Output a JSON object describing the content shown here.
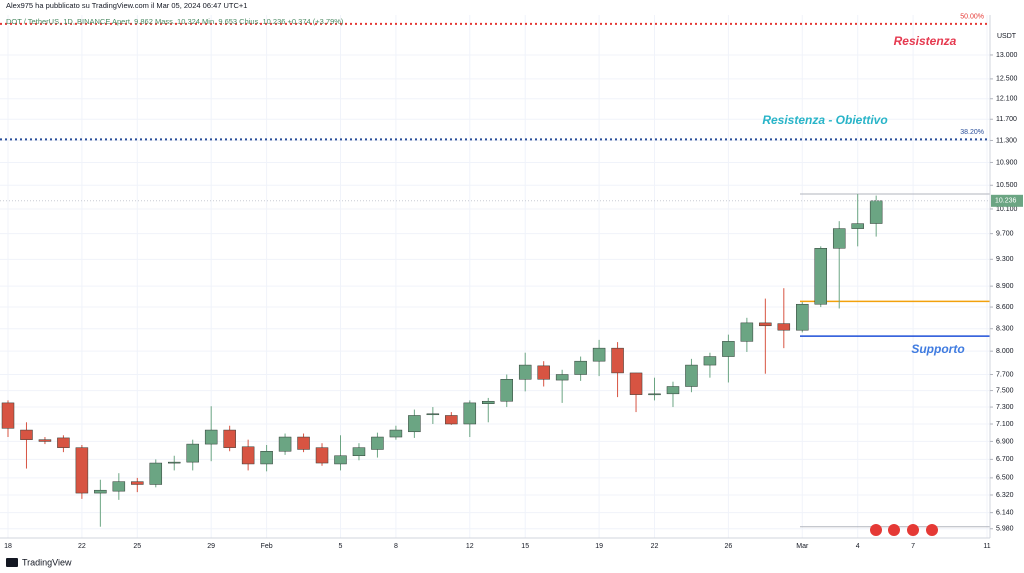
{
  "header": {
    "publisher": "Alex975 ha pubblicato su TradingView.com il Mar 05, 2024 06:47 UTC+1",
    "symbol_line": "DOT / TetherUS, 1D, BINANCE  Apert. 9.862  Mass. 10.324  Min. 9.653  Chius. 10.236  +0.374 (+3.79%)",
    "currency": "USDT"
  },
  "footer": {
    "brand": "TradingView"
  },
  "chart_data": {
    "type": "candlestick",
    "log": true,
    "grid": true,
    "up_color": "#6ba583",
    "down_color": "#d75442",
    "categories": [
      "18",
      null,
      null,
      null,
      "22",
      null,
      null,
      "25",
      null,
      null,
      null,
      "29",
      null,
      null,
      "Feb",
      null,
      null,
      null,
      "5",
      null,
      null,
      "8",
      null,
      null,
      null,
      "12",
      null,
      null,
      "15",
      null,
      null,
      null,
      "19",
      null,
      null,
      "22",
      null,
      null,
      null,
      "26",
      null,
      null,
      null,
      "Mar",
      null,
      null,
      "4",
      null,
      null,
      "7",
      null,
      null,
      null,
      "11"
    ],
    "series": [
      {
        "name": "Open",
        "values": [
          7.35,
          7.03,
          6.92,
          6.94,
          6.83,
          6.34,
          6.36,
          6.46,
          6.43,
          6.66,
          6.67,
          6.87,
          7.03,
          6.84,
          6.65,
          6.79,
          6.95,
          6.83,
          6.65,
          6.74,
          6.81,
          6.95,
          7.01,
          7.21,
          7.2,
          7.1,
          7.34,
          7.37,
          7.64,
          7.81,
          7.63,
          7.7,
          7.87,
          8.04,
          7.72,
          7.45,
          7.46,
          7.55,
          7.82,
          7.93,
          8.13,
          8.38,
          8.37,
          8.28,
          8.64,
          9.47,
          9.78,
          9.862,
          null,
          null,
          null,
          null,
          null,
          null
        ]
      },
      {
        "name": "High",
        "values": [
          7.38,
          7.12,
          6.95,
          6.97,
          6.86,
          6.48,
          6.55,
          6.5,
          6.7,
          6.74,
          6.92,
          7.31,
          7.08,
          6.92,
          6.86,
          6.99,
          6.99,
          6.88,
          6.97,
          6.88,
          7.0,
          7.08,
          7.27,
          7.3,
          7.24,
          7.38,
          7.41,
          7.7,
          7.98,
          7.87,
          7.76,
          7.93,
          8.15,
          8.12,
          7.72,
          7.66,
          7.61,
          7.9,
          7.98,
          8.22,
          8.45,
          8.72,
          8.87,
          8.67,
          9.5,
          9.9,
          10.35,
          10.324,
          null,
          null,
          null,
          null,
          null,
          null
        ]
      },
      {
        "name": "Low",
        "values": [
          6.95,
          6.6,
          6.87,
          6.78,
          6.28,
          6.0,
          6.27,
          6.35,
          6.4,
          6.58,
          6.58,
          6.68,
          6.79,
          6.58,
          6.57,
          6.75,
          6.78,
          6.63,
          6.58,
          6.69,
          6.72,
          6.92,
          6.94,
          7.1,
          7.09,
          6.95,
          7.12,
          7.3,
          7.49,
          7.55,
          7.35,
          7.62,
          7.68,
          7.42,
          7.24,
          7.38,
          7.3,
          7.48,
          7.66,
          7.6,
          7.99,
          7.71,
          8.04,
          8.25,
          8.6,
          8.58,
          9.5,
          9.653,
          null,
          null,
          null,
          null,
          null,
          null
        ]
      },
      {
        "name": "Close",
        "values": [
          7.05,
          6.92,
          6.9,
          6.83,
          6.34,
          6.37,
          6.46,
          6.43,
          6.66,
          6.67,
          6.87,
          7.03,
          6.83,
          6.65,
          6.79,
          6.95,
          6.81,
          6.66,
          6.74,
          6.83,
          6.95,
          7.03,
          7.2,
          7.22,
          7.1,
          7.35,
          7.37,
          7.64,
          7.82,
          7.64,
          7.7,
          7.87,
          8.04,
          7.72,
          7.45,
          7.46,
          7.55,
          7.82,
          7.93,
          8.13,
          8.38,
          8.34,
          8.28,
          8.64,
          9.47,
          9.78,
          9.86,
          10.236,
          null,
          null,
          null,
          null,
          null,
          null
        ]
      }
    ],
    "ylim": [
      5.89,
      13.88
    ],
    "yticks": [
      {
        "value": 13.0,
        "label": "13.000"
      },
      {
        "value": 12.5,
        "label": "12.500"
      },
      {
        "value": 12.1,
        "label": "12.100"
      },
      {
        "value": 11.7,
        "label": "11.700"
      },
      {
        "value": 11.3,
        "label": "11.300"
      },
      {
        "value": 10.9,
        "label": "10.900"
      },
      {
        "value": 10.5,
        "label": "10.500"
      },
      {
        "value": 10.1,
        "label": "10.100"
      },
      {
        "value": 9.7,
        "label": "9.700"
      },
      {
        "value": 9.3,
        "label": "9.300"
      },
      {
        "value": 8.9,
        "label": "8.900"
      },
      {
        "value": 8.6,
        "label": "8.600"
      },
      {
        "value": 8.3,
        "label": "8.300"
      },
      {
        "value": 8.0,
        "label": "8.000"
      },
      {
        "value": 7.7,
        "label": "7.700"
      },
      {
        "value": 7.5,
        "label": "7.500"
      },
      {
        "value": 7.3,
        "label": "7.300"
      },
      {
        "value": 7.1,
        "label": "7.100"
      },
      {
        "value": 6.9,
        "label": "6.900"
      },
      {
        "value": 6.7,
        "label": "6.700"
      },
      {
        "value": 6.5,
        "label": "6.500"
      },
      {
        "value": 6.32,
        "label": "6.320"
      },
      {
        "value": 6.14,
        "label": "6.140"
      },
      {
        "value": 5.98,
        "label": "5.980"
      }
    ],
    "levels": [
      {
        "label": "50.00%",
        "value": 13.68,
        "color": "#e53935"
      },
      {
        "label": "38.20%",
        "value": 11.32,
        "color": "#2a4f9a"
      }
    ],
    "hlines": [
      {
        "value": 10.35,
        "color": "#b2b5be"
      },
      {
        "value": 8.68,
        "color": "#f2a10c"
      },
      {
        "value": 8.2,
        "color": "#1e4fd8"
      },
      {
        "value": 6.0,
        "color": "#b2b5be"
      }
    ],
    "annotations": [
      {
        "text": "Resistenza",
        "color": "#e5394f"
      },
      {
        "text": "Resistenza - Obiettivo",
        "color": "#28b4c8"
      },
      {
        "text": "Supporto",
        "color": "#3f7be0"
      }
    ]
  }
}
